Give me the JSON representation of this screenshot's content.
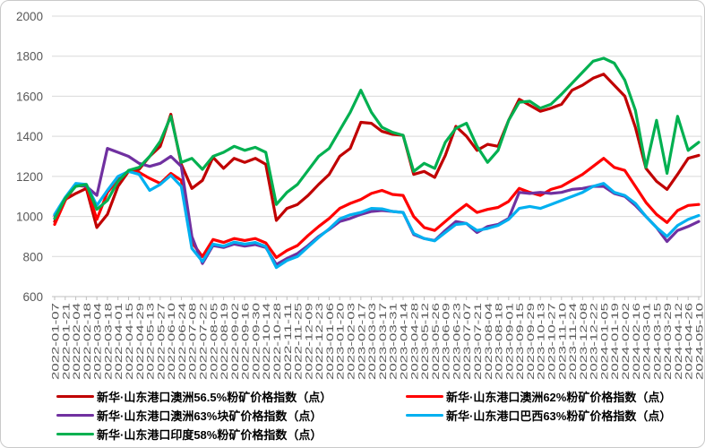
{
  "chart_data": {
    "type": "line",
    "title": "",
    "xlabel": "",
    "ylabel": "",
    "ylim": [
      600,
      2000
    ],
    "y_ticks": [
      "600",
      "800",
      "1000",
      "1200",
      "1400",
      "1600",
      "1800",
      "2000"
    ],
    "grid": "horizontal",
    "legend_position": "bottom-two-columns",
    "x": [
      "2022-01-07",
      "2022-01-21",
      "2022-02-04",
      "2022-02-18",
      "2022-03-04",
      "2022-03-18",
      "2022-04-01",
      "2022-04-15",
      "2022-04-29",
      "2022-05-13",
      "2022-05-27",
      "2022-06-10",
      "2022-06-24",
      "2022-07-08",
      "2022-07-22",
      "2022-08-05",
      "2022-08-19",
      "2022-09-02",
      "2022-09-16",
      "2022-09-30",
      "2022-10-14",
      "2022-10-28",
      "2022-11-11",
      "2022-11-25",
      "2022-12-09",
      "2022-12-23",
      "2023-01-06",
      "2023-01-20",
      "2023-02-03",
      "2023-02-17",
      "2023-03-03",
      "2023-03-17",
      "2023-03-31",
      "2023-04-14",
      "2023-04-28",
      "2023-05-12",
      "2023-05-26",
      "2023-06-09",
      "2023-06-23",
      "2023-07-07",
      "2023-07-21",
      "2023-08-04",
      "2023-08-18",
      "2023-09-01",
      "2023-09-15",
      "2023-09-29",
      "2023-10-13",
      "2023-10-27",
      "2023-11-10",
      "2023-11-24",
      "2023-12-08",
      "2023-12-22",
      "2024-01-05",
      "2024-01-19",
      "2024-02-02",
      "2024-02-16",
      "2024-03-01",
      "2024-03-15",
      "2024-03-29",
      "2024-04-12",
      "2024-04-26",
      "2024-05-10"
    ],
    "series": [
      {
        "name": "新华·山东港口澳洲56.5%粉矿价格指数（点）",
        "color": "#C00000",
        "values": [
          975,
          1085,
          1115,
          1140,
          945,
          1010,
          1150,
          1225,
          1235,
          1300,
          1350,
          1510,
          1260,
          1140,
          1180,
          1295,
          1240,
          1290,
          1270,
          1290,
          1260,
          980,
          1040,
          1060,
          1105,
          1160,
          1210,
          1300,
          1340,
          1470,
          1465,
          1425,
          1410,
          1405,
          1210,
          1225,
          1195,
          1305,
          1450,
          1400,
          1330,
          1360,
          1350,
          1480,
          1585,
          1555,
          1525,
          1540,
          1560,
          1630,
          1655,
          1690,
          1710,
          1655,
          1600,
          1445,
          1240,
          1175,
          1135,
          1210,
          1290,
          1305
        ]
      },
      {
        "name": "新华·山东港口澳洲62%粉矿价格指数（点）",
        "color": "#FF0000",
        "values": [
          960,
          1080,
          1155,
          1150,
          985,
          1120,
          1185,
          1225,
          1220,
          1190,
          1165,
          1215,
          1180,
          870,
          800,
          885,
          870,
          890,
          880,
          890,
          868,
          795,
          830,
          855,
          905,
          950,
          990,
          1040,
          1065,
          1085,
          1115,
          1130,
          1110,
          1105,
          1000,
          945,
          930,
          975,
          1020,
          1060,
          1020,
          1035,
          1045,
          1075,
          1140,
          1120,
          1105,
          1135,
          1150,
          1180,
          1210,
          1250,
          1290,
          1245,
          1230,
          1150,
          1070,
          1010,
          970,
          1030,
          1055,
          1060
        ]
      },
      {
        "name": "新华·山东港口澳洲63%块矿价格指数（点）",
        "color": "#7030A0",
        "values": [
          1005,
          1090,
          1160,
          1150,
          1105,
          1340,
          1320,
          1300,
          1265,
          1250,
          1265,
          1300,
          1250,
          900,
          765,
          855,
          845,
          862,
          852,
          860,
          845,
          760,
          790,
          815,
          855,
          900,
          935,
          975,
          990,
          1010,
          1025,
          1030,
          1025,
          1020,
          910,
          890,
          880,
          930,
          975,
          965,
          920,
          950,
          960,
          990,
          1120,
          1115,
          1120,
          1115,
          1120,
          1135,
          1140,
          1150,
          1150,
          1115,
          1100,
          1055,
          1000,
          945,
          875,
          930,
          950,
          975
        ]
      },
      {
        "name": "新华·山东港口巴西63%粉矿价格指数（点）",
        "color": "#00B0F0",
        "values": [
          1010,
          1095,
          1165,
          1160,
          1055,
          1130,
          1200,
          1225,
          1210,
          1130,
          1160,
          1205,
          1150,
          840,
          775,
          862,
          852,
          872,
          862,
          870,
          850,
          745,
          780,
          800,
          848,
          895,
          938,
          988,
          1008,
          1020,
          1040,
          1038,
          1025,
          1020,
          915,
          890,
          878,
          920,
          960,
          965,
          930,
          940,
          955,
          985,
          1040,
          1050,
          1040,
          1060,
          1080,
          1100,
          1120,
          1150,
          1165,
          1120,
          1105,
          1065,
          1000,
          945,
          900,
          955,
          985,
          1005
        ]
      },
      {
        "name": "新华·山东港口印度58%粉矿价格指数（点）",
        "color": "#00B050",
        "values": [
          990,
          1090,
          1150,
          1160,
          1035,
          1080,
          1175,
          1230,
          1245,
          1300,
          1375,
          1500,
          1270,
          1290,
          1235,
          1300,
          1320,
          1350,
          1330,
          1345,
          1320,
          1060,
          1120,
          1160,
          1230,
          1300,
          1340,
          1430,
          1520,
          1630,
          1520,
          1445,
          1420,
          1405,
          1225,
          1265,
          1240,
          1370,
          1440,
          1465,
          1350,
          1270,
          1330,
          1480,
          1570,
          1575,
          1540,
          1560,
          1610,
          1665,
          1720,
          1775,
          1790,
          1765,
          1680,
          1530,
          1245,
          1480,
          1215,
          1500,
          1330,
          1370
        ]
      }
    ],
    "legend_columns": [
      [
        0,
        2,
        4
      ],
      [
        1,
        3
      ]
    ],
    "colors": {
      "grid": "#D9D9D9",
      "axis": "#BFBFBF",
      "tick_label": "#595959"
    }
  }
}
